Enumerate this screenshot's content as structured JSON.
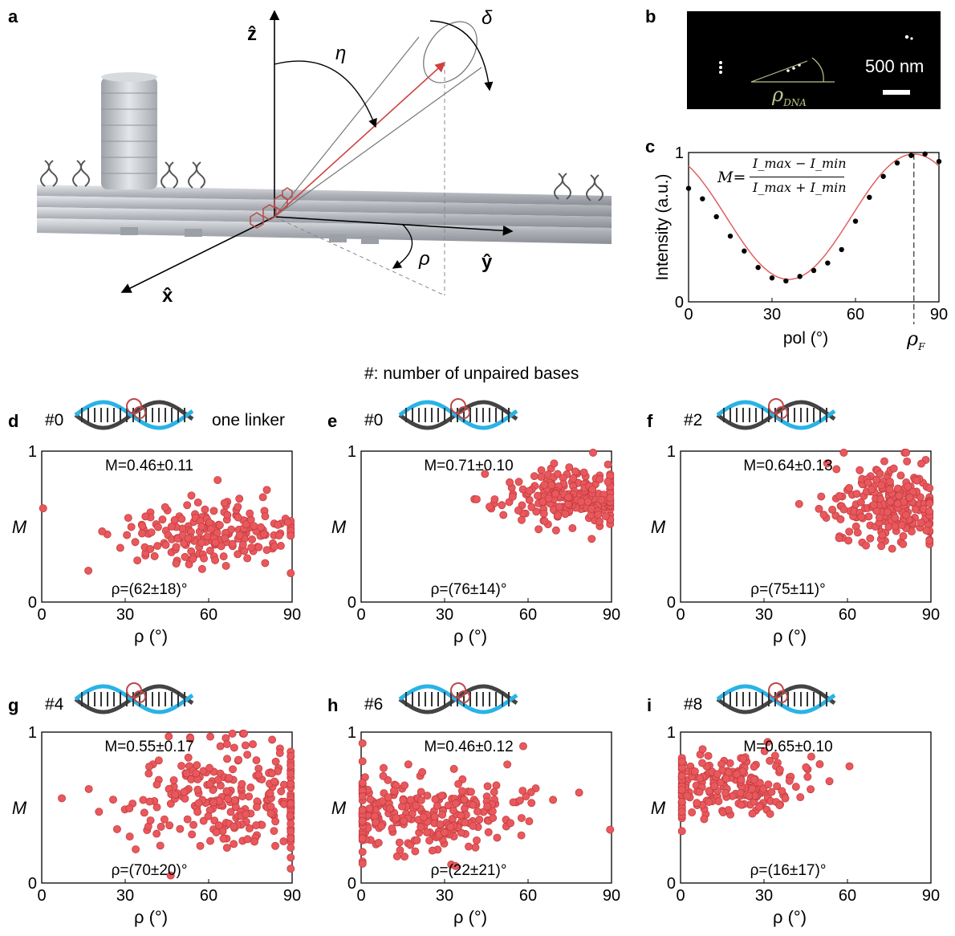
{
  "panel_letters": {
    "a": "a",
    "b": "b",
    "c": "c",
    "d": "d",
    "e": "e",
    "f": "f",
    "g": "g",
    "h": "h",
    "i": "i"
  },
  "panel_a": {
    "axis_z": "ẑ",
    "axis_y": "ŷ",
    "axis_x": "x̂",
    "angle_eta": "η",
    "angle_delta": "δ",
    "angle_rho": "ρ"
  },
  "panel_b": {
    "scalebar": "500 nm",
    "rho_label": "ρ",
    "rho_sub": "DNA"
  },
  "panel_c": {
    "ylabel": "Intensity (a.u.)",
    "xlabel": "pol (°)",
    "formula_lhs": "M=",
    "num": "I_max − I_min",
    "den": "I_max + I_min",
    "rhoF": "ρ",
    "rhoF_sub": "F"
  },
  "header_note": "#: number of unpaired bases",
  "scatter_common": {
    "ylabel": "M",
    "xlabel": "ρ (°)"
  },
  "chart_data": [
    {
      "id": "c",
      "type": "scatter",
      "xlabel": "pol (°)",
      "ylabel": "Intensity (a.u.)",
      "xlim": [
        0,
        90
      ],
      "ylim": [
        0,
        1
      ],
      "xticks": [
        0,
        30,
        60,
        90
      ],
      "yticks": [
        0,
        1
      ],
      "x": [
        0,
        5,
        10,
        15,
        20,
        25,
        30,
        35,
        40,
        45,
        50,
        55,
        60,
        65,
        70,
        75,
        80,
        85,
        90
      ],
      "y": [
        0.76,
        0.69,
        0.57,
        0.44,
        0.34,
        0.23,
        0.16,
        0.14,
        0.17,
        0.21,
        0.26,
        0.35,
        0.54,
        0.7,
        0.84,
        0.93,
        0.98,
        0.99,
        0.94
      ],
      "fit": "cos2",
      "marker": "rho_F ≈ 81"
    },
    {
      "id": "d",
      "type": "scatter",
      "tag": "#0",
      "note": "one linker",
      "M_text": "M=0.46±0.11",
      "rho_text": "ρ=(62±18)°",
      "xlim": [
        0,
        90
      ],
      "ylim": [
        0,
        1
      ],
      "xticks": [
        0,
        30,
        60,
        90
      ],
      "yticks": [
        0,
        1
      ],
      "mean_x": 62,
      "sd_x": 18,
      "mean_y": 0.46,
      "sd_y": 0.11,
      "n": 200,
      "seed": 11
    },
    {
      "id": "e",
      "type": "scatter",
      "tag": "#0",
      "M_text": "M=0.71±0.10",
      "rho_text": "ρ=(76±14)°",
      "xlim": [
        0,
        90
      ],
      "ylim": [
        0,
        1
      ],
      "xticks": [
        0,
        30,
        60,
        90
      ],
      "yticks": [
        0,
        1
      ],
      "mean_x": 76,
      "sd_x": 14,
      "mean_y": 0.71,
      "sd_y": 0.1,
      "n": 230,
      "seed": 23
    },
    {
      "id": "f",
      "type": "scatter",
      "tag": "#2",
      "M_text": "M=0.64±0.13",
      "rho_text": "ρ=(75±11)°",
      "xlim": [
        0,
        90
      ],
      "ylim": [
        0,
        1
      ],
      "xticks": [
        0,
        30,
        60,
        90
      ],
      "yticks": [
        0,
        1
      ],
      "mean_x": 75,
      "sd_x": 11,
      "mean_y": 0.64,
      "sd_y": 0.13,
      "n": 230,
      "seed": 37
    },
    {
      "id": "g",
      "type": "scatter",
      "tag": "#4",
      "M_text": "M=0.55±0.17",
      "rho_text": "ρ=(70±20)°",
      "xlim": [
        0,
        90
      ],
      "ylim": [
        0,
        1
      ],
      "xticks": [
        0,
        30,
        60,
        90
      ],
      "yticks": [
        0,
        1
      ],
      "mean_x": 70,
      "sd_x": 20,
      "mean_y": 0.55,
      "sd_y": 0.17,
      "n": 260,
      "seed": 41
    },
    {
      "id": "h",
      "type": "scatter",
      "tag": "#6",
      "M_text": "M=0.46±0.12",
      "rho_text": "ρ=(22±21)°",
      "xlim": [
        0,
        90
      ],
      "ylim": [
        0,
        1
      ],
      "xticks": [
        0,
        30,
        60,
        90
      ],
      "yticks": [
        0,
        1
      ],
      "mean_x": 22,
      "sd_x": 21,
      "mean_y": 0.46,
      "sd_y": 0.12,
      "n": 280,
      "seed": 53
    },
    {
      "id": "i",
      "type": "scatter",
      "tag": "#8",
      "M_text": "M=0.65±0.10",
      "rho_text": "ρ=(16±17)°",
      "xlim": [
        0,
        90
      ],
      "ylim": [
        0,
        1
      ],
      "xticks": [
        0,
        30,
        60,
        90
      ],
      "yticks": [
        0,
        1
      ],
      "mean_x": 16,
      "sd_x": 17,
      "mean_y": 0.65,
      "sd_y": 0.1,
      "n": 230,
      "seed": 67
    }
  ],
  "colors": {
    "marker": "#e8585c",
    "marker_edge": "#c0393d",
    "fit_line": "#e06060",
    "dna_dark": "#444444",
    "dna_blue": "#29b3e6",
    "dye": "#b94a4a",
    "rod": "#b9bcc1",
    "bg_micro": "#000000"
  }
}
